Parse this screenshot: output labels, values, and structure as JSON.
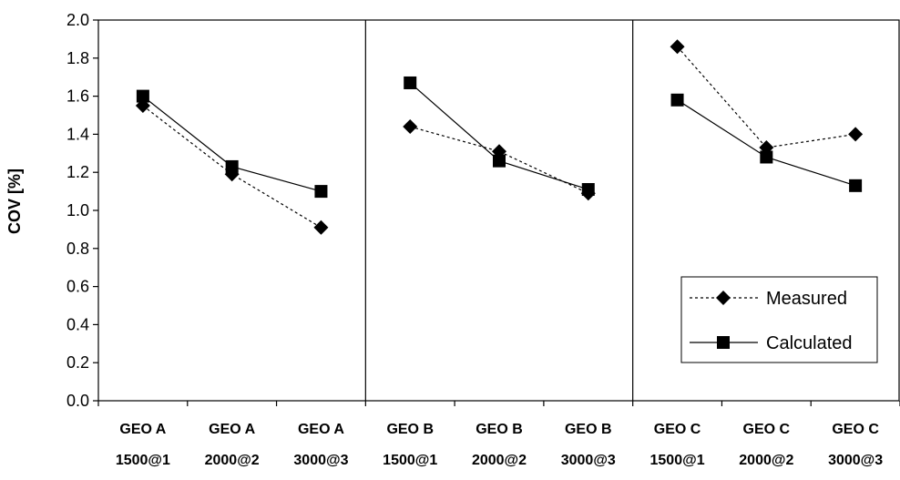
{
  "chart_data": {
    "type": "line",
    "ylabel": "COV [%]",
    "ylim": [
      0.0,
      2.0
    ],
    "yticks": [
      "0.0",
      "0.2",
      "0.4",
      "0.6",
      "0.8",
      "1.0",
      "1.2",
      "1.4",
      "1.6",
      "1.8",
      "2.0"
    ],
    "categories": [
      [
        "GEO A",
        "1500@1"
      ],
      [
        "GEO A",
        "2000@2"
      ],
      [
        "GEO A",
        "3000@3"
      ],
      [
        "GEO B",
        "1500@1"
      ],
      [
        "GEO B",
        "2000@2"
      ],
      [
        "GEO B",
        "3000@3"
      ],
      [
        "GEO C",
        "1500@1"
      ],
      [
        "GEO C",
        "2000@2"
      ],
      [
        "GEO C",
        "3000@3"
      ]
    ],
    "groups": [
      [
        0,
        1,
        2
      ],
      [
        3,
        4,
        5
      ],
      [
        6,
        7,
        8
      ]
    ],
    "series": [
      {
        "name": "Measured",
        "marker": "diamond",
        "line": "dotted",
        "values": [
          1.55,
          1.19,
          0.91,
          1.44,
          1.31,
          1.09,
          1.86,
          1.33,
          1.4
        ]
      },
      {
        "name": "Calculated",
        "marker": "square",
        "line": "solid",
        "values": [
          1.6,
          1.23,
          1.1,
          1.67,
          1.26,
          1.11,
          1.58,
          1.28,
          1.13
        ]
      }
    ],
    "legend_position": "lower-right",
    "grid": false,
    "colors": {
      "line": "#000000",
      "background": "#ffffff"
    }
  }
}
